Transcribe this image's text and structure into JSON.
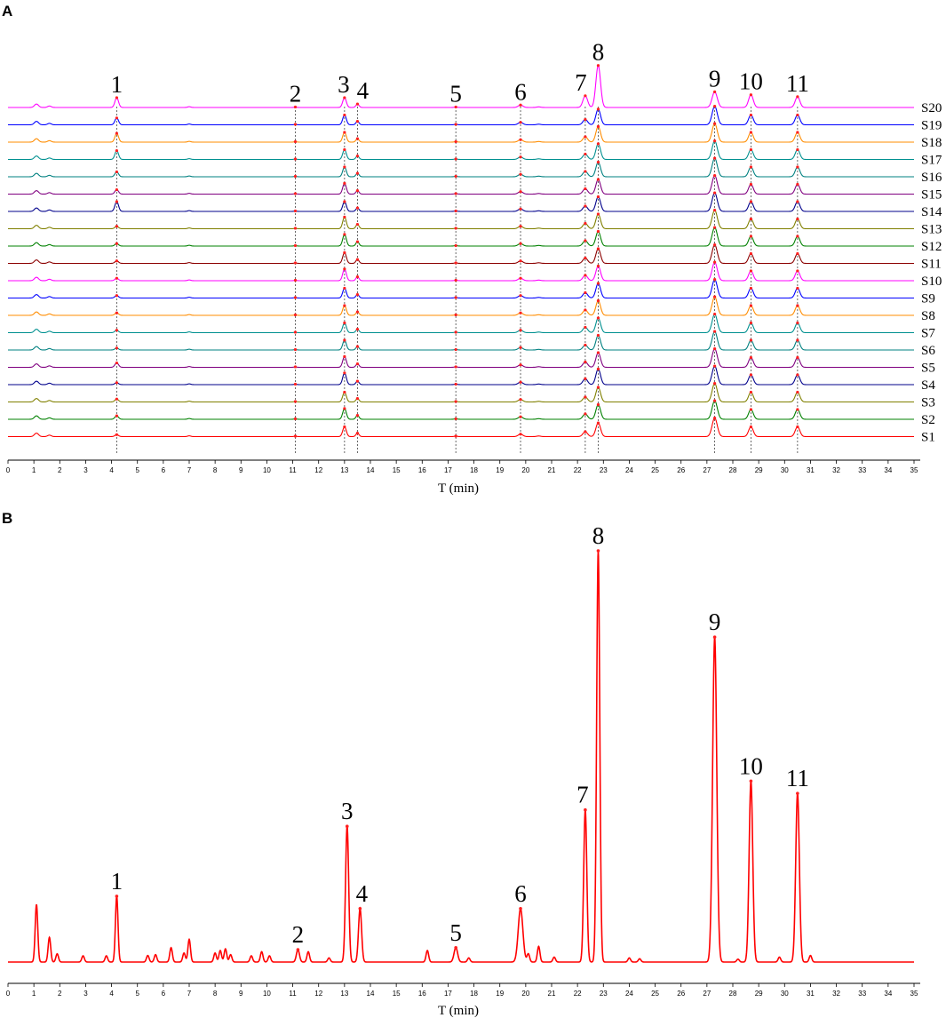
{
  "panels": {
    "a": {
      "letter": "A"
    },
    "b": {
      "letter": "B"
    }
  },
  "chart_data": [
    {
      "panel": "A",
      "type": "line",
      "title": "",
      "xlabel": "T (min)",
      "ylabel": "",
      "xlim": [
        0,
        35
      ],
      "x_ticks": [
        0,
        1,
        2,
        3,
        4,
        5,
        6,
        7,
        8,
        9,
        10,
        11,
        12,
        13,
        14,
        15,
        16,
        17,
        18,
        19,
        20,
        21,
        22,
        23,
        24,
        25,
        26,
        27,
        28,
        29,
        30,
        31,
        32,
        33,
        34,
        35
      ],
      "grid": false,
      "peak_labels": [
        "1",
        "2",
        "3",
        "4",
        "5",
        "6",
        "7",
        "8",
        "9",
        "10",
        "11"
      ],
      "peak_times": [
        4.2,
        11.1,
        13.0,
        13.5,
        17.3,
        19.8,
        22.3,
        22.8,
        27.3,
        28.7,
        30.5
      ],
      "series": [
        {
          "name": "S1",
          "color": "#ff0000",
          "peak_heights": [
            0.2,
            0.05,
            1.0,
            0.35,
            0.05,
            0.25,
            0.5,
            1.4,
            1.9,
            1.0,
            1.0
          ]
        },
        {
          "name": "S2",
          "color": "#008000",
          "peak_heights": [
            0.35,
            0.05,
            1.1,
            0.4,
            0.05,
            0.25,
            0.55,
            1.5,
            1.9,
            1.0,
            1.0
          ]
        },
        {
          "name": "S3",
          "color": "#808000",
          "peak_heights": [
            0.3,
            0.05,
            1.0,
            0.35,
            0.05,
            0.25,
            0.5,
            1.5,
            1.9,
            1.0,
            1.0
          ]
        },
        {
          "name": "S4",
          "color": "#00008b",
          "peak_heights": [
            0.2,
            0.05,
            1.2,
            0.35,
            0.05,
            0.25,
            0.6,
            1.6,
            1.9,
            1.0,
            1.0
          ]
        },
        {
          "name": "S5",
          "color": "#800080",
          "peak_heights": [
            0.45,
            0.05,
            1.1,
            0.35,
            0.05,
            0.25,
            0.55,
            1.5,
            1.9,
            1.0,
            1.0
          ]
        },
        {
          "name": "S6",
          "color": "#008080",
          "peak_heights": [
            0.2,
            0.05,
            1.0,
            0.35,
            0.05,
            0.25,
            0.5,
            1.5,
            1.9,
            1.0,
            1.0
          ]
        },
        {
          "name": "S7",
          "color": "#009090",
          "peak_heights": [
            0.25,
            0.05,
            1.0,
            0.35,
            0.05,
            0.25,
            0.55,
            1.5,
            1.9,
            1.0,
            1.0
          ]
        },
        {
          "name": "S8",
          "color": "#ff8c00",
          "peak_heights": [
            0.25,
            0.05,
            1.0,
            0.35,
            0.05,
            0.25,
            0.55,
            1.5,
            1.9,
            1.0,
            1.0
          ]
        },
        {
          "name": "S9",
          "color": "#0000ff",
          "peak_heights": [
            0.25,
            0.05,
            1.0,
            0.35,
            0.05,
            0.25,
            0.55,
            1.5,
            1.9,
            1.0,
            1.0
          ]
        },
        {
          "name": "S10",
          "color": "#ff00ff",
          "peak_heights": [
            0.25,
            0.05,
            1.2,
            0.4,
            0.05,
            0.25,
            0.55,
            1.5,
            1.9,
            1.0,
            1.0
          ]
        },
        {
          "name": "S11",
          "color": "#8b0000",
          "peak_heights": [
            0.25,
            0.05,
            1.1,
            0.4,
            0.05,
            0.25,
            0.55,
            1.5,
            1.9,
            1.0,
            1.0
          ]
        },
        {
          "name": "S12",
          "color": "#008000",
          "peak_heights": [
            0.25,
            0.05,
            1.2,
            0.45,
            0.05,
            0.25,
            0.55,
            1.5,
            1.9,
            1.0,
            1.0
          ]
        },
        {
          "name": "S13",
          "color": "#808000",
          "peak_heights": [
            0.25,
            0.05,
            1.2,
            0.45,
            0.05,
            0.25,
            0.55,
            1.5,
            1.9,
            1.0,
            1.0
          ]
        },
        {
          "name": "S14",
          "color": "#00008b",
          "peak_heights": [
            1.0,
            0.05,
            1.0,
            0.35,
            0.05,
            0.25,
            0.55,
            1.5,
            1.9,
            1.0,
            1.0
          ]
        },
        {
          "name": "S15",
          "color": "#800080",
          "peak_heights": [
            0.45,
            0.05,
            1.1,
            0.35,
            0.05,
            0.25,
            0.55,
            1.5,
            1.9,
            1.0,
            1.0
          ]
        },
        {
          "name": "S16",
          "color": "#008080",
          "peak_heights": [
            0.5,
            0.05,
            1.0,
            0.35,
            0.05,
            0.25,
            0.55,
            1.5,
            1.9,
            1.0,
            1.0
          ]
        },
        {
          "name": "S17",
          "color": "#009090",
          "peak_heights": [
            0.9,
            0.05,
            1.0,
            0.35,
            0.05,
            0.25,
            0.55,
            1.6,
            1.9,
            1.0,
            1.0
          ]
        },
        {
          "name": "S18",
          "color": "#ff8c00",
          "peak_heights": [
            0.9,
            0.05,
            1.0,
            0.35,
            0.05,
            0.25,
            0.55,
            1.6,
            1.9,
            1.0,
            1.0
          ]
        },
        {
          "name": "S19",
          "color": "#0000ff",
          "peak_heights": [
            0.7,
            0.05,
            1.0,
            0.35,
            0.05,
            0.25,
            0.55,
            1.6,
            1.9,
            1.0,
            1.0
          ]
        },
        {
          "name": "S20",
          "color": "#ff00ff",
          "peak_heights": [
            1.0,
            0.05,
            1.0,
            0.35,
            0.05,
            0.25,
            1.2,
            4.3,
            1.6,
            1.3,
            1.1
          ]
        }
      ]
    },
    {
      "panel": "B",
      "type": "line",
      "title": "",
      "xlabel": "T (min)",
      "ylabel": "",
      "xlim": [
        0,
        35
      ],
      "ylim": [
        0,
        100
      ],
      "x_ticks": [
        0,
        1,
        2,
        3,
        4,
        5,
        6,
        7,
        8,
        9,
        10,
        11,
        12,
        13,
        14,
        15,
        16,
        17,
        18,
        19,
        20,
        21,
        22,
        23,
        24,
        25,
        26,
        27,
        28,
        29,
        30,
        31,
        32,
        33,
        34,
        35
      ],
      "grid": false,
      "color": "#ff0000",
      "peaks": [
        {
          "label": "1",
          "time": 4.2,
          "height": 16
        },
        {
          "label": "2",
          "time": 11.2,
          "height": 3
        },
        {
          "label": "3",
          "time": 13.1,
          "height": 33
        },
        {
          "label": "4",
          "time": 13.6,
          "height": 13
        },
        {
          "label": "5",
          "time": 17.3,
          "height": 3.5
        },
        {
          "label": "6",
          "time": 19.8,
          "height": 13
        },
        {
          "label": "7",
          "time": 22.3,
          "height": 37
        },
        {
          "label": "8",
          "time": 22.8,
          "height": 100
        },
        {
          "label": "9",
          "time": 27.3,
          "height": 79
        },
        {
          "label": "10",
          "time": 28.7,
          "height": 44
        },
        {
          "label": "11",
          "time": 30.5,
          "height": 41
        }
      ],
      "minor_peaks": [
        {
          "time": 1.1,
          "height": 14
        },
        {
          "time": 1.6,
          "height": 6
        },
        {
          "time": 1.9,
          "height": 2
        },
        {
          "time": 2.9,
          "height": 1.5
        },
        {
          "time": 3.8,
          "height": 1.5
        },
        {
          "time": 5.4,
          "height": 1.6
        },
        {
          "time": 5.7,
          "height": 1.8
        },
        {
          "time": 6.3,
          "height": 3.5
        },
        {
          "time": 6.8,
          "height": 2.2
        },
        {
          "time": 7.0,
          "height": 5.5
        },
        {
          "time": 8.0,
          "height": 2.2
        },
        {
          "time": 8.2,
          "height": 2.8
        },
        {
          "time": 8.4,
          "height": 3.2
        },
        {
          "time": 8.6,
          "height": 1.8
        },
        {
          "time": 9.4,
          "height": 1.5
        },
        {
          "time": 9.8,
          "height": 2.5
        },
        {
          "time": 10.1,
          "height": 1.5
        },
        {
          "time": 11.6,
          "height": 2.5
        },
        {
          "time": 12.4,
          "height": 1.0
        },
        {
          "time": 16.2,
          "height": 2.8
        },
        {
          "time": 17.8,
          "height": 1.0
        },
        {
          "time": 20.1,
          "height": 2.0
        },
        {
          "time": 20.5,
          "height": 3.8
        },
        {
          "time": 21.1,
          "height": 1.2
        },
        {
          "time": 24.0,
          "height": 1.0
        },
        {
          "time": 24.4,
          "height": 0.8
        },
        {
          "time": 28.2,
          "height": 0.7
        },
        {
          "time": 29.8,
          "height": 1.2
        },
        {
          "time": 31.0,
          "height": 1.6
        }
      ]
    }
  ]
}
